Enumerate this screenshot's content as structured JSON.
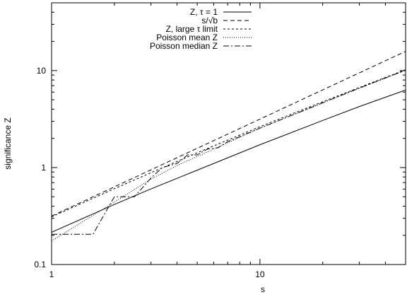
{
  "chart_data": {
    "type": "line",
    "title": "",
    "xlabel": "s",
    "ylabel": "significance Z",
    "xscale": "log",
    "yscale": "log",
    "xlim": [
      1,
      50
    ],
    "ylim": [
      0.1,
      50
    ],
    "grid": false,
    "legend_position": "top-right",
    "x_ticks": [
      {
        "value": 1,
        "label": "1"
      },
      {
        "value": 10,
        "label": "10"
      }
    ],
    "y_ticks": [
      {
        "value": 0.1,
        "label": "0.1"
      },
      {
        "value": 1,
        "label": "1"
      },
      {
        "value": 10,
        "label": "10"
      }
    ],
    "series": [
      {
        "name": "Z, τ = 1",
        "dash": "solid",
        "x": [
          1,
          2,
          3,
          5,
          10,
          20,
          30,
          50
        ],
        "y": [
          0.215,
          0.416,
          0.602,
          0.94,
          1.72,
          3.06,
          4.26,
          6.3
        ]
      },
      {
        "name": "s/√b",
        "dash": "dashed",
        "x": [
          1,
          50
        ],
        "y": [
          0.316,
          15.8
        ]
      },
      {
        "name": "Z, large τ limit",
        "dash": "dotted-short",
        "x": [
          1,
          2,
          3,
          5,
          10,
          20,
          30,
          50
        ],
        "y": [
          0.31,
          0.605,
          0.885,
          1.42,
          2.64,
          4.78,
          6.7,
          10.2
        ]
      },
      {
        "name": "Poisson mean Z",
        "dash": "dotted",
        "x": [
          1,
          1.5,
          2,
          3,
          4,
          5,
          7,
          10,
          20,
          30,
          50
        ],
        "y": [
          0.175,
          0.3,
          0.44,
          0.76,
          1.05,
          1.3,
          1.8,
          2.55,
          4.65,
          6.6,
          10.1
        ]
      },
      {
        "name": "Poisson median Z",
        "dash": "dash-dot",
        "x": [
          1,
          1.58,
          2,
          2.5,
          3.0,
          3.4,
          4.0,
          4.5,
          5.0,
          5.6,
          6.3,
          7.0,
          10,
          20,
          30,
          50
        ],
        "y": [
          0.205,
          0.205,
          0.5,
          0.5,
          0.78,
          1.0,
          1.1,
          1.35,
          1.35,
          1.55,
          1.6,
          1.85,
          2.55,
          4.65,
          6.6,
          10.1
        ]
      }
    ]
  }
}
